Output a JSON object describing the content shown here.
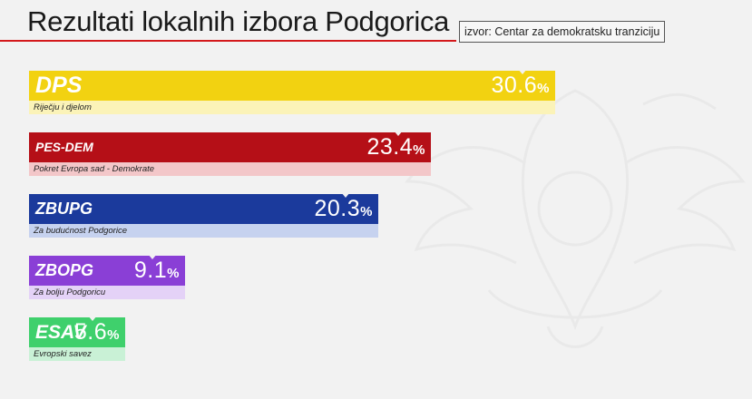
{
  "header": {
    "title": "Rezultati lokalnih izbora Podgorica",
    "source": "izvor: Centar za demokratsku tranziciju"
  },
  "chart_data": {
    "type": "bar",
    "orientation": "horizontal",
    "title": "Rezultati lokalnih izbora Podgorica",
    "categories": [
      "DPS",
      "PES-DEM",
      "ZBUPG",
      "ZBOPG",
      "ESAV"
    ],
    "full_names": [
      "Riječju i djelom",
      "Pokret Evropa sad - Demokrate",
      "Za budućnost Podgorice",
      "Za bolju Podgoricu",
      "Evropski savez"
    ],
    "values": [
      30.6,
      23.4,
      20.3,
      9.1,
      5.6
    ],
    "value_labels": [
      "30.6",
      "23.4",
      "20.3",
      "9.1",
      "5.6"
    ],
    "unit": "%",
    "colors": [
      "#f2d211",
      "#b50f17",
      "#1b3a9c",
      "#8a3fd6",
      "#3fd06c"
    ],
    "sub_colors": [
      "#fbf3b8",
      "#f3c7c9",
      "#c6d2ef",
      "#e4d2f7",
      "#c9f1d6"
    ],
    "label_colors": [
      "#ffffff",
      "#ffffff",
      "#ffffff",
      "#ffffff",
      "#ffffff"
    ],
    "grid": false,
    "legend": "none"
  }
}
